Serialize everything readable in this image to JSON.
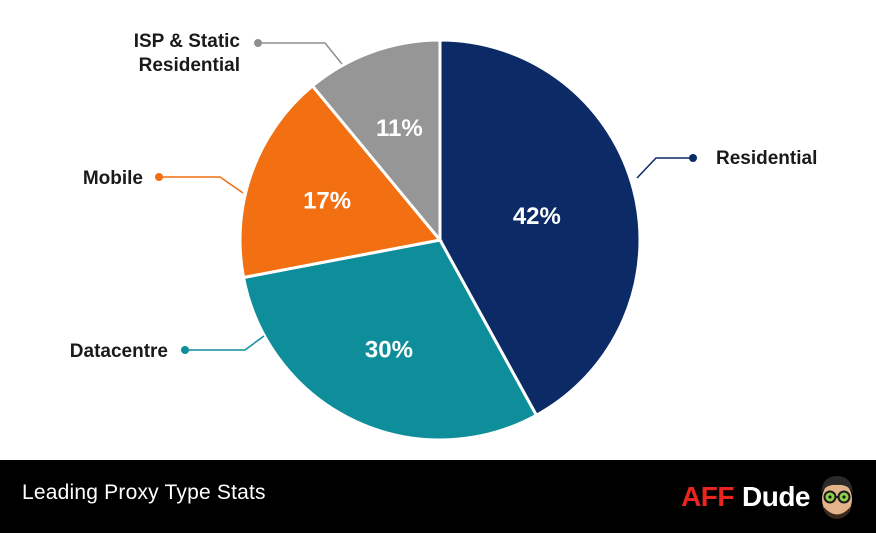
{
  "chart_data": {
    "type": "pie",
    "slices": [
      {
        "label": "Residential",
        "value": 42,
        "display": "42%",
        "color": "#0b2a66"
      },
      {
        "label": "Datacentre",
        "value": 30,
        "display": "30%",
        "color": "#0e8d9b"
      },
      {
        "label": "Mobile",
        "value": 17,
        "display": "17%",
        "color": "#f26f12"
      },
      {
        "label": "ISP & Static\nResidential",
        "value": 11,
        "display": "11%",
        "color": "#969696"
      }
    ],
    "start_angle_deg": 0,
    "direction": "clockwise",
    "label_position": "outside with leader lines",
    "value_label_position": "inside"
  },
  "footer": {
    "title": "Leading Proxy Type Stats",
    "brand_aff": "AFF",
    "brand_dude": "Dude"
  },
  "colors": {
    "footer_bg": "#000000",
    "brand_red": "#e8261f"
  }
}
